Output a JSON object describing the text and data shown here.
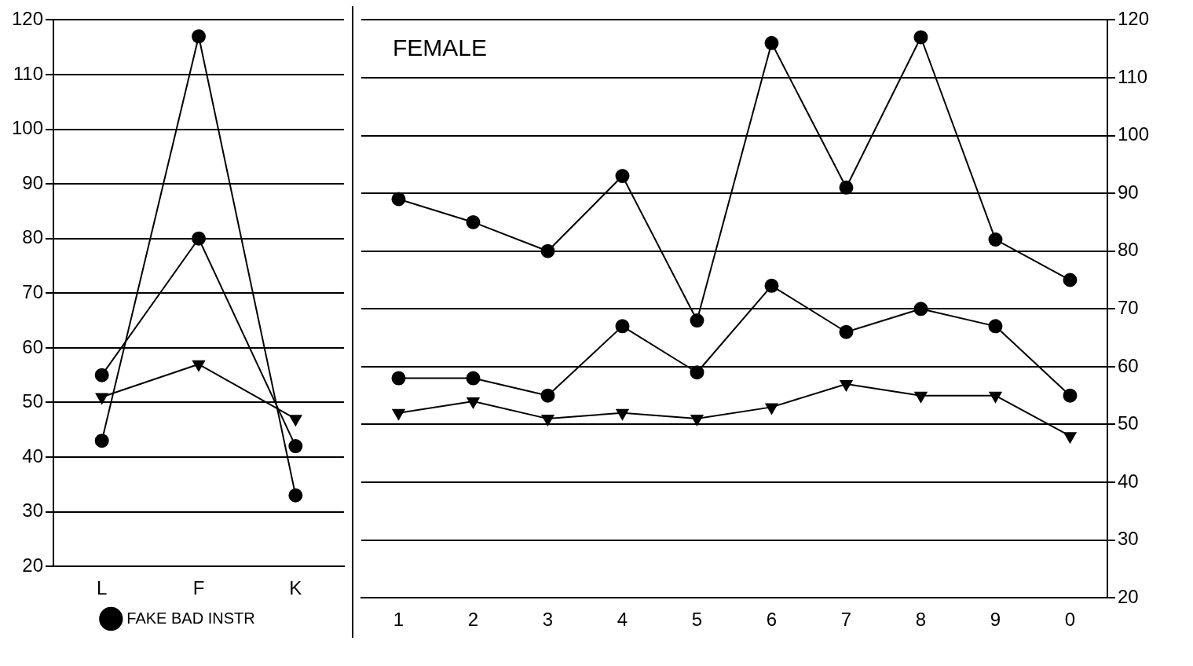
{
  "chart_data": [
    {
      "type": "line",
      "categories": [
        "L",
        "F",
        "K"
      ],
      "ylim": [
        20,
        120
      ],
      "yticks": [
        20,
        30,
        40,
        50,
        60,
        70,
        80,
        90,
        100,
        110,
        120
      ],
      "grid": "y",
      "line_style": "solid",
      "legend": "bottom",
      "series": [
        {
          "name": "FAKE BAD INSTR",
          "color": "#000000",
          "marker": "circle",
          "values": [
            43,
            117,
            33
          ]
        },
        {
          "color": "#000000",
          "marker": "circle",
          "values": [
            55,
            80,
            42
          ]
        },
        {
          "color": "#000000",
          "marker": "triangle",
          "values": [
            51,
            57,
            47
          ]
        }
      ]
    },
    {
      "type": "line",
      "categories": [
        "1",
        "2",
        "3",
        "4",
        "5",
        "6",
        "7",
        "8",
        "9",
        "0"
      ],
      "ylim": [
        20,
        120
      ],
      "yticks": [
        20,
        30,
        40,
        50,
        60,
        70,
        80,
        90,
        100,
        110,
        120
      ],
      "grid": "y",
      "line_style": "solid",
      "annotations": [
        "FEMALE"
      ],
      "series": [
        {
          "color": "#000000",
          "marker": "circle",
          "values": [
            89,
            85,
            80,
            93,
            68,
            116,
            91,
            117,
            82,
            75
          ]
        },
        {
          "color": "#000000",
          "marker": "circle",
          "values": [
            58,
            58,
            55,
            67,
            59,
            74,
            66,
            70,
            67,
            55
          ]
        },
        {
          "color": "#000000",
          "marker": "triangle",
          "values": [
            52,
            54,
            51,
            52,
            51,
            53,
            57,
            55,
            55,
            48
          ]
        }
      ]
    }
  ]
}
